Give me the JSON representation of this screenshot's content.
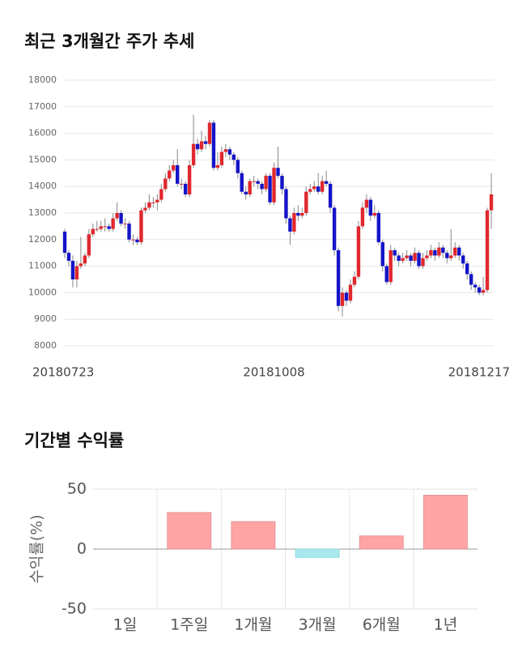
{
  "chart_data": [
    {
      "type": "candlestick",
      "title": "최근 3개월간 주가 추세",
      "categories": [
        "20180723",
        null,
        null,
        null,
        null,
        null,
        null,
        null,
        null,
        null,
        null,
        null,
        null,
        null,
        null,
        null,
        null,
        null,
        null,
        null,
        null,
        null,
        null,
        null,
        null,
        null,
        null,
        null,
        null,
        null,
        null,
        null,
        null,
        null,
        null,
        null,
        null,
        null,
        null,
        null,
        null,
        null,
        null,
        null,
        null,
        null,
        null,
        null,
        null,
        null,
        null,
        null,
        "20181008",
        null,
        null,
        null,
        null,
        null,
        null,
        null,
        null,
        null,
        null,
        null,
        null,
        null,
        null,
        null,
        null,
        null,
        null,
        null,
        null,
        null,
        null,
        null,
        null,
        null,
        null,
        null,
        null,
        null,
        null,
        null,
        null,
        null,
        null,
        null,
        null,
        null,
        null,
        null,
        null,
        null,
        null,
        null,
        null,
        null,
        null,
        null,
        null,
        null,
        null,
        null,
        null,
        null,
        "20181217"
      ],
      "open": [
        12300,
        11500,
        11200,
        10500,
        11000,
        11100,
        11400,
        12200,
        12400,
        12400,
        12500,
        12500,
        12400,
        12800,
        13000,
        12600,
        12600,
        12000,
        12000,
        11900,
        13100,
        13200,
        13400,
        13400,
        13500,
        13900,
        14300,
        14600,
        14800,
        14100,
        14100,
        13700,
        14800,
        15600,
        15400,
        15700,
        15600,
        16400,
        14700,
        14800,
        15300,
        15400,
        15200,
        15000,
        14500,
        13800,
        13700,
        14200,
        14200,
        14100,
        13900,
        14400,
        13400,
        14700,
        14400,
        13900,
        12800,
        12300,
        13000,
        12900,
        13000,
        13800,
        13900,
        14000,
        13800,
        14200,
        14100,
        13200,
        11600,
        9500,
        10000,
        9700,
        10300,
        10600,
        12500,
        13200,
        13500,
        12900,
        13000,
        11900,
        11000,
        10400,
        11600,
        11400,
        11200,
        11300,
        11400,
        11200,
        11500,
        11000,
        11300,
        11400,
        11600,
        11400,
        11700,
        11500,
        11300,
        11400,
        11700,
        11400,
        11100,
        10700,
        10300,
        10200,
        10000,
        10100,
        13100
      ],
      "high": [
        12400,
        11600,
        11400,
        11200,
        12100,
        11500,
        12400,
        12600,
        12700,
        12700,
        12800,
        12600,
        13000,
        13400,
        13100,
        12800,
        12700,
        12200,
        12100,
        13200,
        13400,
        13700,
        13600,
        13700,
        14100,
        14500,
        14800,
        15000,
        15400,
        14300,
        14200,
        15000,
        16700,
        15800,
        16100,
        15900,
        16500,
        16500,
        15300,
        15500,
        15600,
        15500,
        15300,
        15100,
        14600,
        14000,
        14300,
        14400,
        14300,
        14200,
        14500,
        14500,
        14900,
        15500,
        14500,
        14000,
        12900,
        13200,
        13300,
        13200,
        14000,
        14100,
        14200,
        14500,
        14400,
        14600,
        14200,
        13300,
        11700,
        10200,
        10100,
        10500,
        10800,
        12700,
        13400,
        13700,
        13600,
        13300,
        13100,
        12000,
        11100,
        11800,
        11700,
        11500,
        11500,
        11600,
        11500,
        11700,
        11600,
        11500,
        11600,
        11800,
        11700,
        11900,
        11800,
        11600,
        12400,
        11900,
        11800,
        11500,
        11200,
        10800,
        10400,
        10300,
        10600,
        13200,
        14500
      ],
      "low": [
        11300,
        11000,
        10200,
        10200,
        10900,
        11000,
        11300,
        12100,
        12300,
        12300,
        12300,
        12300,
        12300,
        12700,
        12500,
        12400,
        11900,
        11800,
        11800,
        11800,
        13000,
        13100,
        13200,
        13100,
        13400,
        13800,
        14200,
        14500,
        14000,
        13900,
        13600,
        13600,
        14700,
        15200,
        15300,
        15400,
        15500,
        14600,
        14600,
        14700,
        15100,
        15000,
        14800,
        14300,
        13700,
        13500,
        13600,
        14000,
        13900,
        13700,
        13800,
        13300,
        13300,
        14300,
        13700,
        12600,
        11800,
        12200,
        12700,
        12800,
        12900,
        13700,
        13800,
        13700,
        13700,
        14000,
        13000,
        11400,
        9300,
        9100,
        9500,
        9600,
        10200,
        10500,
        12400,
        13000,
        12700,
        12800,
        11800,
        10800,
        10300,
        10300,
        11200,
        11000,
        11100,
        11200,
        11000,
        11100,
        10900,
        10900,
        11200,
        11300,
        11200,
        11300,
        11300,
        11100,
        11200,
        11300,
        11200,
        10900,
        10500,
        10100,
        10000,
        9900,
        9900,
        10000,
        12400
      ],
      "close": [
        11500,
        11200,
        10500,
        11000,
        11100,
        11400,
        12200,
        12400,
        12400,
        12500,
        12500,
        12400,
        12800,
        13000,
        12600,
        12600,
        12000,
        12000,
        11900,
        13100,
        13200,
        13400,
        13400,
        13500,
        13900,
        14300,
        14600,
        14800,
        14100,
        14100,
        13700,
        14800,
        15600,
        15400,
        15700,
        15600,
        16400,
        14700,
        14800,
        15300,
        15400,
        15200,
        15000,
        14500,
        13800,
        13700,
        14200,
        14200,
        14100,
        13900,
        14400,
        13400,
        14700,
        14400,
        13900,
        12800,
        12300,
        13000,
        12900,
        13000,
        13800,
        13900,
        14000,
        13800,
        14200,
        14100,
        13200,
        11600,
        9500,
        10000,
        9700,
        10300,
        10600,
        12500,
        13200,
        13500,
        12900,
        13000,
        11900,
        11000,
        10400,
        11600,
        11400,
        11200,
        11300,
        11400,
        11200,
        11500,
        11000,
        11300,
        11400,
        11600,
        11400,
        11700,
        11500,
        11300,
        11400,
        11700,
        11400,
        11100,
        10700,
        10300,
        10200,
        10000,
        10100,
        13100,
        13700
      ],
      "up_color": "#e0282e",
      "down_color": "#1414c8",
      "ylim": [
        8000,
        18000
      ],
      "yticks": [
        8000,
        9000,
        10000,
        11000,
        12000,
        13000,
        14000,
        15000,
        16000,
        17000,
        18000
      ],
      "grid": true
    },
    {
      "type": "bar",
      "title": "기간별 수익률",
      "ylabel": "수익률(%)",
      "categories": [
        "1일",
        "1주일",
        "1개월",
        "3개월",
        "6개월",
        "1년"
      ],
      "values": [
        0,
        30.5,
        23,
        -7,
        11,
        45
      ],
      "positive_color": "#ffa4a4",
      "negative_color": "#a9e8ef",
      "ylim": [
        -50,
        50
      ],
      "yticks": [
        -50,
        0,
        50
      ],
      "grid": true
    }
  ]
}
